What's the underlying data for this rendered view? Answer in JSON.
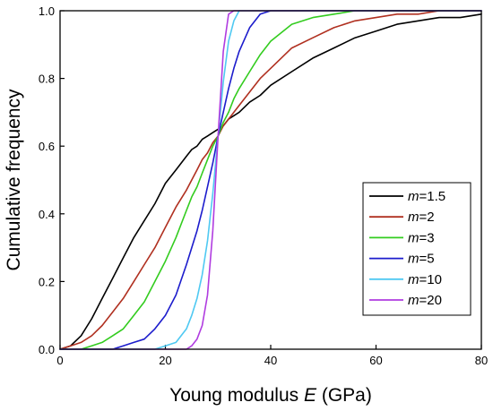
{
  "chart_data": {
    "type": "line",
    "xlabel": {
      "prefix": "Young modulus ",
      "var": "E",
      "suffix": " (GPa)"
    },
    "ylabel": "Cumulative frequency",
    "xlim": [
      0,
      80
    ],
    "ylim": [
      0,
      1.0
    ],
    "xticks": [
      0,
      20,
      40,
      60,
      80
    ],
    "yticks": [
      0.0,
      0.2,
      0.4,
      0.6,
      0.8,
      1.0
    ],
    "ytick_labels": [
      "0.0",
      "0.2",
      "0.4",
      "0.6",
      "0.8",
      "1.0"
    ],
    "grid": false,
    "legend_position": "bottom-right",
    "x": [
      0,
      2,
      4,
      6,
      8,
      10,
      12,
      14,
      16,
      18,
      20,
      22,
      24,
      25,
      26,
      27,
      28,
      29,
      30,
      31,
      32,
      33,
      34,
      36,
      38,
      40,
      44,
      48,
      52,
      56,
      60,
      64,
      68,
      72,
      76,
      80
    ],
    "series": [
      {
        "name": "m=1.5",
        "param": "1.5",
        "color": "#000000",
        "values": [
          0.0,
          0.01,
          0.04,
          0.09,
          0.15,
          0.21,
          0.27,
          0.33,
          0.38,
          0.43,
          0.49,
          0.53,
          0.57,
          0.59,
          0.6,
          0.62,
          0.63,
          0.64,
          0.65,
          0.66,
          0.68,
          0.69,
          0.7,
          0.73,
          0.75,
          0.78,
          0.82,
          0.86,
          0.89,
          0.92,
          0.94,
          0.96,
          0.97,
          0.98,
          0.98,
          0.99
        ]
      },
      {
        "name": "m=2",
        "param": "2",
        "color": "#b03020",
        "values": [
          0.0,
          0.01,
          0.02,
          0.04,
          0.07,
          0.11,
          0.15,
          0.2,
          0.25,
          0.3,
          0.36,
          0.42,
          0.47,
          0.5,
          0.53,
          0.56,
          0.58,
          0.61,
          0.63,
          0.66,
          0.68,
          0.7,
          0.72,
          0.76,
          0.8,
          0.83,
          0.89,
          0.92,
          0.95,
          0.97,
          0.98,
          0.99,
          0.99,
          1.0,
          1.0,
          1.0
        ]
      },
      {
        "name": "m=3",
        "param": "3",
        "color": "#33cc1f",
        "values": [
          0.0,
          0.0,
          0.0,
          0.01,
          0.02,
          0.04,
          0.06,
          0.1,
          0.14,
          0.2,
          0.26,
          0.33,
          0.41,
          0.45,
          0.48,
          0.52,
          0.56,
          0.6,
          0.63,
          0.67,
          0.7,
          0.74,
          0.77,
          0.82,
          0.87,
          0.91,
          0.96,
          0.98,
          0.99,
          1.0,
          1.0,
          1.0,
          1.0,
          1.0,
          1.0,
          1.0
        ]
      },
      {
        "name": "m=5",
        "param": "5",
        "color": "#1c1ccc",
        "values": [
          0.0,
          0.0,
          0.0,
          0.0,
          0.0,
          0.0,
          0.01,
          0.02,
          0.03,
          0.06,
          0.1,
          0.16,
          0.25,
          0.3,
          0.35,
          0.41,
          0.48,
          0.55,
          0.63,
          0.7,
          0.77,
          0.83,
          0.88,
          0.95,
          0.99,
          1.0,
          1.0,
          1.0,
          1.0,
          1.0,
          1.0,
          1.0,
          1.0,
          1.0,
          1.0,
          1.0
        ]
      },
      {
        "name": "m=10",
        "param": "10",
        "color": "#4fc9f2",
        "values": [
          0.0,
          0.0,
          0.0,
          0.0,
          0.0,
          0.0,
          0.0,
          0.0,
          0.0,
          0.0,
          0.01,
          0.02,
          0.06,
          0.1,
          0.15,
          0.22,
          0.32,
          0.46,
          0.63,
          0.79,
          0.91,
          0.97,
          1.0,
          1.0,
          1.0,
          1.0,
          1.0,
          1.0,
          1.0,
          1.0,
          1.0,
          1.0,
          1.0,
          1.0,
          1.0,
          1.0
        ]
      },
      {
        "name": "m=20",
        "param": "20",
        "color": "#b03ce0",
        "values": [
          0.0,
          0.0,
          0.0,
          0.0,
          0.0,
          0.0,
          0.0,
          0.0,
          0.0,
          0.0,
          0.0,
          0.0,
          0.0,
          0.01,
          0.03,
          0.07,
          0.16,
          0.35,
          0.63,
          0.88,
          0.99,
          1.0,
          1.0,
          1.0,
          1.0,
          1.0,
          1.0,
          1.0,
          1.0,
          1.0,
          1.0,
          1.0,
          1.0,
          1.0,
          1.0,
          1.0
        ]
      }
    ]
  }
}
